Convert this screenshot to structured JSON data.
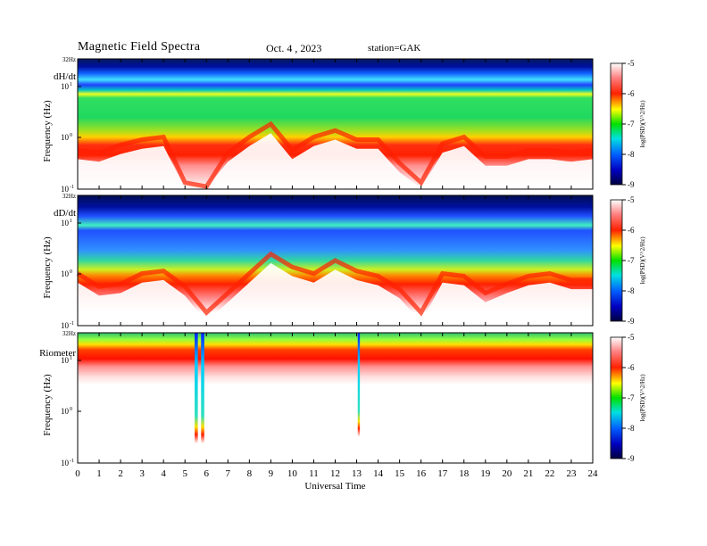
{
  "header": {
    "title": "Magnetic  Field  Spectra",
    "date": "Oct. 4  , 2023",
    "station": "station=GAK"
  },
  "chart_data": [
    {
      "type": "heatmap",
      "panel_label": "dH/dt",
      "top_label": "32Hz",
      "ylabel": "Frequency  (Hz)",
      "yticks": [
        {
          "label": "10",
          "exp": "1"
        },
        {
          "label": "10",
          "exp": "0"
        },
        {
          "label": "10",
          "exp": "-1"
        }
      ],
      "xlim": [
        0,
        24
      ],
      "colorbar": {
        "ticks": [
          "-5",
          "-6",
          "-7",
          "-8",
          "-9"
        ],
        "label": "log(PSD)(V^2/Hz)"
      }
    },
    {
      "type": "heatmap",
      "panel_label": "dD/dt",
      "top_label": "32Hz",
      "ylabel": "Frequency  (Hz)",
      "yticks": [
        {
          "label": "10",
          "exp": "1"
        },
        {
          "label": "10",
          "exp": "0"
        },
        {
          "label": "10",
          "exp": "-1"
        }
      ],
      "xlim": [
        0,
        24
      ],
      "colorbar": {
        "ticks": [
          "-5",
          "-6",
          "-7",
          "-8",
          "-9"
        ],
        "label": "log(PSD)(V^2/Hz)"
      }
    },
    {
      "type": "heatmap",
      "panel_label": "Riometer",
      "top_label": "32Hz",
      "ylabel": "Frequency  (Hz)",
      "yticks": [
        {
          "label": "10",
          "exp": "1"
        },
        {
          "label": "10",
          "exp": "0"
        },
        {
          "label": "10",
          "exp": "-1"
        }
      ],
      "xlim": [
        0,
        24
      ],
      "xticks": [
        "0",
        "1",
        "2",
        "3",
        "4",
        "5",
        "6",
        "7",
        "8",
        "9",
        "10",
        "11",
        "12",
        "13",
        "14",
        "15",
        "16",
        "17",
        "18",
        "19",
        "20",
        "21",
        "22",
        "23",
        "24"
      ],
      "xlabel": "Universal  Time",
      "colorbar": {
        "ticks": [
          "-5",
          "-6",
          "-7",
          "-8",
          "-9"
        ],
        "label": "log(PSD)(V^2/Hz)"
      }
    }
  ]
}
